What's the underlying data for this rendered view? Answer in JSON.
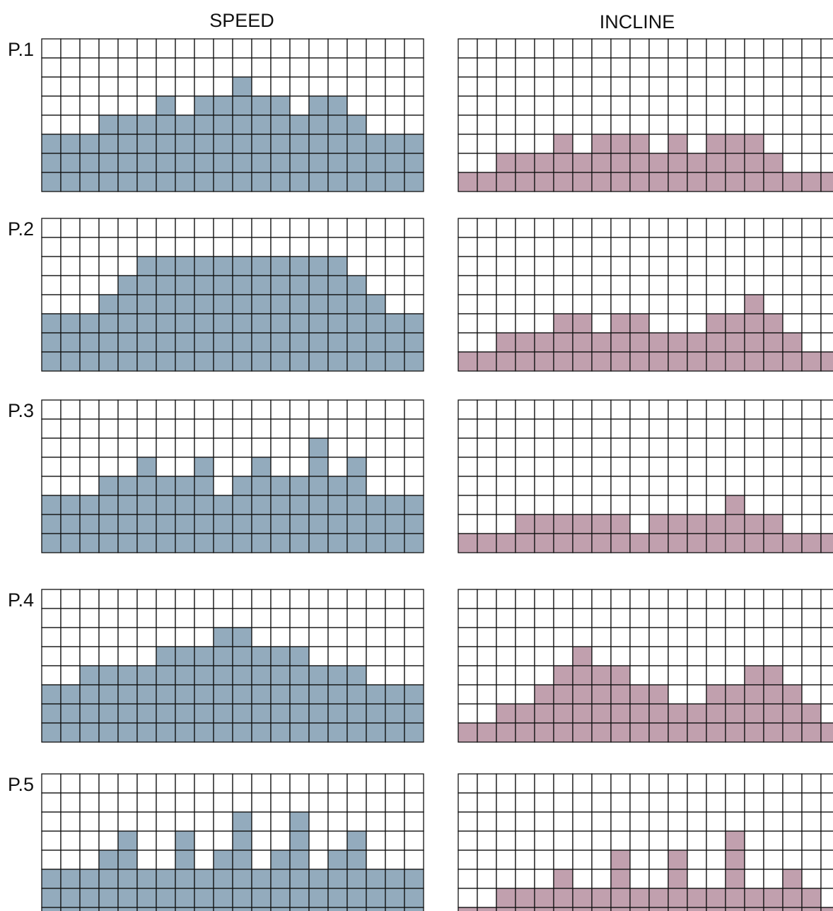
{
  "headers": {
    "speed": "SPEED",
    "incline": "INCLINE"
  },
  "colors": {
    "speed_fill": "#93abbd",
    "incline_fill": "#c1a0ae",
    "grid_line": "#111111"
  },
  "grid": {
    "columns": 20,
    "rows": 8
  },
  "chart_data": [
    {
      "type": "bar",
      "program": "P.1",
      "metric": "SPEED",
      "values": [
        3,
        3,
        3,
        4,
        4,
        4,
        5,
        4,
        5,
        5,
        6,
        5,
        5,
        4,
        5,
        5,
        4,
        3,
        3,
        3
      ]
    },
    {
      "type": "bar",
      "program": "P.1",
      "metric": "INCLINE",
      "values": [
        1,
        1,
        2,
        2,
        2,
        3,
        2,
        3,
        3,
        3,
        2,
        3,
        2,
        3,
        3,
        3,
        2,
        1,
        1,
        1
      ]
    },
    {
      "type": "bar",
      "program": "P.2",
      "metric": "SPEED",
      "values": [
        3,
        3,
        3,
        4,
        5,
        6,
        6,
        6,
        6,
        6,
        6,
        6,
        6,
        6,
        6,
        6,
        5,
        4,
        3,
        3
      ]
    },
    {
      "type": "bar",
      "program": "P.2",
      "metric": "INCLINE",
      "values": [
        1,
        1,
        2,
        2,
        2,
        3,
        3,
        2,
        3,
        3,
        2,
        2,
        2,
        3,
        3,
        4,
        3,
        2,
        1,
        1
      ]
    },
    {
      "type": "bar",
      "program": "P.3",
      "metric": "SPEED",
      "values": [
        3,
        3,
        3,
        4,
        4,
        5,
        4,
        4,
        5,
        3,
        4,
        5,
        4,
        4,
        6,
        4,
        5,
        3,
        3,
        3
      ]
    },
    {
      "type": "bar",
      "program": "P.3",
      "metric": "INCLINE",
      "values": [
        1,
        1,
        1,
        2,
        2,
        2,
        2,
        2,
        2,
        1,
        2,
        2,
        2,
        2,
        3,
        2,
        2,
        1,
        1,
        1
      ]
    },
    {
      "type": "bar",
      "program": "P.4",
      "metric": "SPEED",
      "values": [
        3,
        3,
        4,
        4,
        4,
        4,
        5,
        5,
        5,
        6,
        6,
        5,
        5,
        5,
        4,
        4,
        4,
        3,
        3,
        3
      ]
    },
    {
      "type": "bar",
      "program": "P.4",
      "metric": "INCLINE",
      "values": [
        1,
        1,
        2,
        2,
        3,
        4,
        5,
        4,
        4,
        3,
        3,
        2,
        2,
        3,
        3,
        4,
        4,
        3,
        2,
        1
      ]
    },
    {
      "type": "bar",
      "program": "P.5",
      "metric": "SPEED",
      "values": [
        3,
        3,
        3,
        4,
        5,
        3,
        3,
        5,
        3,
        4,
        6,
        3,
        4,
        6,
        3,
        4,
        5,
        3,
        3,
        3
      ]
    },
    {
      "type": "bar",
      "program": "P.5",
      "metric": "INCLINE",
      "values": [
        1,
        1,
        2,
        2,
        2,
        3,
        2,
        2,
        4,
        2,
        2,
        4,
        2,
        2,
        5,
        2,
        2,
        3,
        2,
        1
      ]
    }
  ]
}
